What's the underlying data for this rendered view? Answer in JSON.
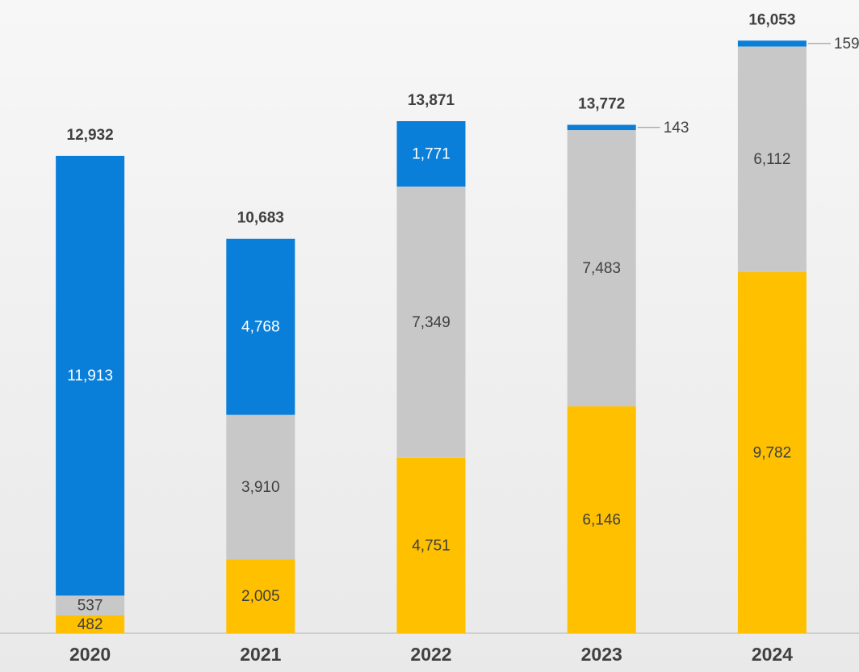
{
  "chart_data": {
    "type": "stacked-bar",
    "categories": [
      "2020",
      "2021",
      "2022",
      "2023",
      "2024"
    ],
    "series": [
      {
        "color": "#ffc000",
        "values": [
          482,
          2005,
          4751,
          6146,
          9782
        ],
        "value_labels": [
          "482",
          "2,005",
          "4,751",
          "6,146",
          "9,782"
        ]
      },
      {
        "color": "#c8c8c8",
        "values": [
          537,
          3910,
          7349,
          7483,
          6112
        ],
        "value_labels": [
          "537",
          "3,910",
          "7,349",
          "7,483",
          "6,112"
        ]
      },
      {
        "color": "#0a7fd9",
        "values": [
          11913,
          4768,
          1771,
          143,
          159
        ],
        "value_labels": [
          "11,913",
          "4,768",
          "1,771",
          "143",
          "159"
        ]
      }
    ],
    "totals": [
      12932,
      10683,
      13871,
      13772,
      16053
    ],
    "total_labels": [
      "12,932",
      "10,683",
      "13,871",
      "13,772",
      "16,053"
    ],
    "ylim": [
      0,
      17000
    ]
  }
}
